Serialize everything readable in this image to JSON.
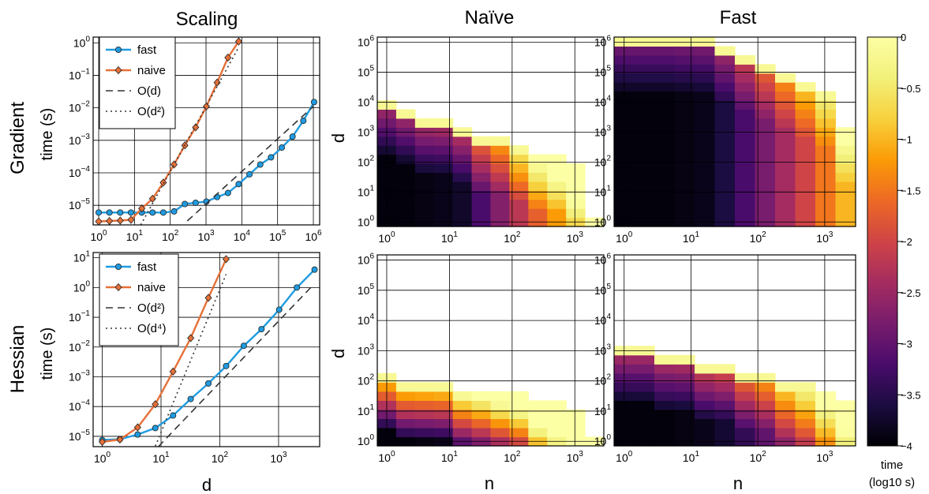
{
  "columns": [
    "Scaling",
    "Naïve",
    "Fast"
  ],
  "rows": [
    "Gradient",
    "Hessian"
  ],
  "colorbar": {
    "label_line1": "time",
    "label_line2": "(log10 s)",
    "range": [
      -4,
      0
    ],
    "ticks": [
      "0",
      "−0.5",
      "−1",
      "−1.5",
      "−2",
      "−2.5",
      "−3",
      "−3.5",
      "−4"
    ],
    "colormap": "inferno"
  },
  "chart_data": [
    {
      "type": "line",
      "id": "gradient-scaling",
      "title": "Scaling",
      "row_label": "Gradient",
      "xlabel": "",
      "ylabel": "time (s)",
      "xscale": "log",
      "yscale": "log",
      "xlim": [
        0.7,
        1500000
      ],
      "ylim": [
        2.5e-06,
        1.5
      ],
      "xticks": [
        {
          "v": 1,
          "e": "0"
        },
        {
          "v": 10,
          "e": "1"
        },
        {
          "v": 100,
          "e": "2"
        },
        {
          "v": 1000,
          "e": "3"
        },
        {
          "v": 10000,
          "e": "4"
        },
        {
          "v": 100000,
          "e": "5"
        },
        {
          "v": 1000000,
          "e": "6"
        }
      ],
      "yticks": [
        {
          "v": 1e-05,
          "e": "−5"
        },
        {
          "v": 0.0001,
          "e": "−4"
        },
        {
          "v": 0.001,
          "e": "−3"
        },
        {
          "v": 0.01,
          "e": "−2"
        },
        {
          "v": 0.1,
          "e": "−1"
        },
        {
          "v": 1,
          "e": "0"
        }
      ],
      "grid": true,
      "legend": "top-left",
      "series": [
        {
          "name": "fast",
          "color": "#1f9be0",
          "marker": "circle",
          "x": [
            1,
            2,
            4,
            8,
            16,
            32,
            64,
            128,
            256,
            512,
            1024,
            2048,
            4096,
            8192,
            16384,
            32768,
            65536,
            131072,
            262144,
            524288,
            1048576
          ],
          "y": [
            6e-06,
            6e-06,
            6e-06,
            6e-06,
            6e-06,
            6e-06,
            6e-06,
            6.5e-06,
            1.1e-05,
            1.2e-05,
            1.3e-05,
            1.8e-05,
            2.4e-05,
            4.5e-05,
            9e-05,
            0.00018,
            0.0003,
            0.0006,
            0.0013,
            0.004,
            0.015
          ]
        },
        {
          "name": "naive",
          "color": "#e57038",
          "marker": "diamond",
          "x": [
            1,
            2,
            4,
            8,
            16,
            32,
            64,
            128,
            256,
            512,
            1024,
            2048,
            4096,
            8192
          ],
          "y": [
            3.2e-06,
            3.3e-06,
            3.4e-06,
            3.6e-06,
            8e-06,
            1.6e-05,
            5e-05,
            0.00018,
            0.0007,
            0.0025,
            0.011,
            0.06,
            0.35,
            1.1
          ]
        },
        {
          "name": "O(d)",
          "color": "#333333",
          "dash": "9,6",
          "x": [
            300,
            1000000
          ],
          "y": [
            3.3e-06,
            0.011
          ]
        },
        {
          "name": "O(d²)",
          "color": "#333333",
          "dash": "2,4",
          "x": [
            15,
            8000
          ],
          "y": [
            2.5e-06,
            0.7
          ]
        }
      ]
    },
    {
      "type": "line",
      "id": "hessian-scaling",
      "title": "",
      "row_label": "Hessian",
      "xlabel": "d",
      "ylabel": "time (s)",
      "xscale": "log",
      "yscale": "log",
      "xlim": [
        0.7,
        5000
      ],
      "ylim": [
        4.5e-06,
        15
      ],
      "xticks": [
        {
          "v": 1,
          "e": "0"
        },
        {
          "v": 10,
          "e": "1"
        },
        {
          "v": 100,
          "e": "2"
        },
        {
          "v": 1000,
          "e": "3"
        }
      ],
      "yticks": [
        {
          "v": 1e-05,
          "e": "−5"
        },
        {
          "v": 0.0001,
          "e": "−4"
        },
        {
          "v": 0.001,
          "e": "−3"
        },
        {
          "v": 0.01,
          "e": "−2"
        },
        {
          "v": 0.1,
          "e": "−1"
        },
        {
          "v": 1,
          "e": "0"
        },
        {
          "v": 10,
          "e": "1"
        }
      ],
      "grid": true,
      "legend": "top-left",
      "series": [
        {
          "name": "fast",
          "color": "#1f9be0",
          "marker": "circle",
          "x": [
            1,
            2,
            4,
            8,
            16,
            32,
            64,
            128,
            256,
            512,
            1024,
            2048,
            4096
          ],
          "y": [
            7.5e-06,
            8e-06,
            1.15e-05,
            1.9e-05,
            5e-05,
            0.00018,
            0.0006,
            0.0023,
            0.011,
            0.04,
            0.18,
            1.0,
            4.0
          ]
        },
        {
          "name": "naive",
          "color": "#e57038",
          "marker": "diamond",
          "x": [
            1,
            2,
            4,
            8,
            16,
            32,
            64,
            128
          ],
          "y": [
            6.5e-06,
            7.8e-06,
            2e-05,
            0.00012,
            0.0015,
            0.02,
            0.45,
            9.0
          ]
        },
        {
          "name": "O(d²)",
          "color": "#333333",
          "dash": "9,6",
          "x": [
            9,
            4000
          ],
          "y": [
            4.5e-06,
            1.3
          ]
        },
        {
          "name": "O(d⁴)",
          "color": "#333333",
          "dash": "2,4",
          "x": [
            8,
            128
          ],
          "y": [
            4.7e-06,
            2.8
          ]
        }
      ]
    },
    {
      "type": "heatmap",
      "id": "gradient-naive",
      "title": "Naïve",
      "row_label": "Gradient",
      "xlabel": "",
      "ylabel": "d",
      "x_log2_range": [
        0,
        11
      ],
      "y_log2_range": [
        0,
        20
      ],
      "xticks": [
        {
          "v": 1,
          "e": "0"
        },
        {
          "v": 10,
          "e": "1"
        },
        {
          "v": 100,
          "e": "2"
        },
        {
          "v": 1000,
          "e": "3"
        }
      ],
      "yticks": [
        {
          "v": 1,
          "e": "0"
        },
        {
          "v": 10,
          "e": "1"
        },
        {
          "v": 100,
          "e": "2"
        },
        {
          "v": 1000,
          "e": "3"
        },
        {
          "v": 10000,
          "e": "4"
        },
        {
          "v": 100000,
          "e": "5"
        },
        {
          "v": 1000000,
          "e": "6"
        }
      ],
      "z_units": "log10 s",
      "max_d_log2_per_n_col": [
        13,
        12,
        11,
        11,
        10,
        9,
        9,
        8,
        7,
        7,
        6,
        0
      ],
      "z_by_n_col": {
        "base": [
          -3.95,
          -3.95,
          -3.9,
          -3.85,
          -3.75,
          -3.2,
          -2.7,
          -2.2,
          -1.7,
          -1.2,
          -0.7,
          -0.3
        ],
        "slope": 0.3
      }
    },
    {
      "type": "heatmap",
      "id": "gradient-fast",
      "title": "Fast",
      "row_label": "Gradient",
      "xlabel": "",
      "ylabel": "",
      "x_log2_range": [
        0,
        11
      ],
      "y_log2_range": [
        0,
        20
      ],
      "xticks": [
        {
          "v": 1,
          "e": "0"
        },
        {
          "v": 10,
          "e": "1"
        },
        {
          "v": 100,
          "e": "2"
        },
        {
          "v": 1000,
          "e": "3"
        }
      ],
      "yticks": [
        {
          "v": 1,
          "e": "0"
        },
        {
          "v": 10,
          "e": "1"
        },
        {
          "v": 100,
          "e": "2"
        },
        {
          "v": 1000,
          "e": "3"
        },
        {
          "v": 10000,
          "e": "4"
        },
        {
          "v": 100000,
          "e": "5"
        },
        {
          "v": 1000000,
          "e": "6"
        }
      ],
      "z_units": "log10 s",
      "max_d_log2_per_n_col": [
        20,
        20,
        20,
        20,
        20,
        19,
        18,
        17,
        16,
        15,
        14,
        10
      ],
      "z_by_n_col": {
        "base": [
          -3.95,
          -3.95,
          -3.95,
          -3.9,
          -3.85,
          -3.6,
          -3.2,
          -2.8,
          -2.4,
          -2.0,
          -1.5,
          -1.0
        ],
        "slope": 0.22
      }
    },
    {
      "type": "heatmap",
      "id": "hessian-naive",
      "title": "",
      "row_label": "Hessian",
      "xlabel": "n",
      "ylabel": "d",
      "x_log2_range": [
        0,
        11
      ],
      "y_log2_range": [
        0,
        20
      ],
      "xticks": [
        {
          "v": 1,
          "e": "0"
        },
        {
          "v": 10,
          "e": "1"
        },
        {
          "v": 100,
          "e": "2"
        },
        {
          "v": 1000,
          "e": "3"
        }
      ],
      "yticks": [
        {
          "v": 1,
          "e": "0"
        },
        {
          "v": 10,
          "e": "1"
        },
        {
          "v": 100,
          "e": "2"
        },
        {
          "v": 1000,
          "e": "3"
        },
        {
          "v": 10000,
          "e": "4"
        },
        {
          "v": 100000,
          "e": "5"
        },
        {
          "v": 1000000,
          "e": "6"
        }
      ],
      "z_units": "log10 s",
      "max_d_log2_per_n_col": [
        7,
        6,
        6,
        6,
        5,
        5,
        5,
        5,
        4,
        4,
        3,
        0
      ],
      "z_by_n_col": {
        "base": [
          -3.95,
          -3.95,
          -3.9,
          -3.85,
          -3.6,
          -3.3,
          -2.9,
          -2.5,
          -2.0,
          -1.4,
          -0.9,
          -0.3
        ],
        "slope": 0.55
      }
    },
    {
      "type": "heatmap",
      "id": "hessian-fast",
      "title": "",
      "row_label": "Hessian",
      "xlabel": "n",
      "ylabel": "",
      "x_log2_range": [
        0,
        11
      ],
      "y_log2_range": [
        0,
        20
      ],
      "xticks": [
        {
          "v": 1,
          "e": "0"
        },
        {
          "v": 10,
          "e": "1"
        },
        {
          "v": 100,
          "e": "2"
        },
        {
          "v": 1000,
          "e": "3"
        }
      ],
      "yticks": [
        {
          "v": 1,
          "e": "0"
        },
        {
          "v": 10,
          "e": "1"
        },
        {
          "v": 100,
          "e": "2"
        },
        {
          "v": 1000,
          "e": "3"
        },
        {
          "v": 10000,
          "e": "4"
        },
        {
          "v": 100000,
          "e": "5"
        },
        {
          "v": 1000000,
          "e": "6"
        }
      ],
      "z_units": "log10 s",
      "max_d_log2_per_n_col": [
        10,
        10,
        9,
        9,
        8,
        8,
        7,
        7,
        6,
        6,
        5,
        4
      ],
      "z_by_n_col": {
        "base": [
          -3.95,
          -3.95,
          -3.95,
          -3.9,
          -3.85,
          -3.7,
          -3.4,
          -3.0,
          -2.6,
          -2.1,
          -1.6,
          -1.0
        ],
        "slope": 0.32
      }
    }
  ]
}
